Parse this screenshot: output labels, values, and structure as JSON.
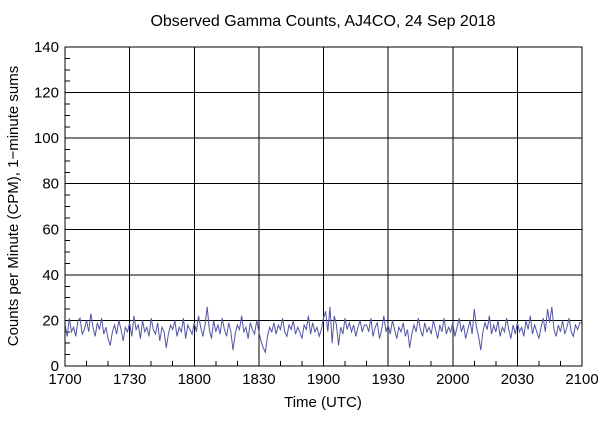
{
  "chart_data": {
    "type": "line",
    "title": "Observed Gamma Counts, AJ4CO, 24 Sep 2018",
    "xlabel": "Time (UTC)",
    "ylabel": "Counts per Minute (CPM), 1−minute sums",
    "x_ticks": [
      "1700",
      "1730",
      "1800",
      "1830",
      "1900",
      "1930",
      "2000",
      "2030",
      "2100"
    ],
    "x_major_step_minutes": 30,
    "x_minor_step_minutes": 10,
    "x_total_minutes": 240,
    "y_ticks": [
      0,
      20,
      40,
      60,
      80,
      100,
      120,
      140
    ],
    "ylim": [
      0,
      140
    ],
    "y_minor_step": 5,
    "grid": true,
    "legend": "none",
    "background_color": "#ffffff",
    "grid_color": "#000000",
    "line_color": "#5454a6",
    "sample_interval_minutes": 1,
    "series": [
      {
        "name": "gamma-counts-1-minute-sums",
        "values": [
          18,
          13,
          21,
          15,
          17,
          13,
          20,
          21,
          14,
          16,
          20,
          15,
          23,
          17,
          13,
          19,
          16,
          21,
          14,
          17,
          12,
          9,
          15,
          18,
          14,
          20,
          16,
          11,
          17,
          15,
          19,
          13,
          22,
          16,
          18,
          12,
          20,
          15,
          17,
          13,
          21,
          16,
          14,
          19,
          11,
          17,
          15,
          8,
          14,
          18,
          16,
          20,
          13,
          17,
          15,
          21,
          12,
          18,
          16,
          14,
          19,
          15,
          22,
          17,
          13,
          18,
          26,
          16,
          12,
          20,
          15,
          18,
          14,
          21,
          16,
          13,
          19,
          15,
          7,
          14,
          18,
          16,
          22,
          15,
          17,
          12,
          19,
          16,
          14,
          20,
          15,
          11,
          8,
          6,
          13,
          17,
          15,
          19,
          14,
          18,
          16,
          21,
          15,
          13,
          18,
          16,
          20,
          14,
          17,
          15,
          12,
          18,
          16,
          22,
          14,
          19,
          15,
          17,
          13,
          16,
          21,
          24,
          15,
          26,
          10,
          22,
          18,
          9,
          17,
          14,
          21,
          16,
          19,
          15,
          18,
          13,
          17,
          20,
          15,
          18,
          18,
          15,
          21,
          13,
          17,
          19,
          12,
          16,
          22,
          15,
          18,
          14,
          20,
          16,
          12,
          17,
          15,
          19,
          13,
          16,
          8,
          14,
          18,
          15,
          21,
          16,
          13,
          19,
          15,
          17,
          14,
          20,
          16,
          12,
          18,
          15,
          21,
          14,
          17,
          15,
          19,
          13,
          17,
          21,
          15,
          18,
          12,
          16,
          20,
          14,
          25,
          17,
          13,
          7,
          15,
          19,
          16,
          22,
          14,
          18,
          15,
          20,
          13,
          17,
          15,
          21,
          16,
          12,
          18,
          14,
          19,
          15,
          17,
          13,
          20,
          16,
          22,
          14,
          18,
          15,
          12,
          17,
          21,
          15,
          25,
          19,
          26,
          16,
          13,
          18,
          15,
          20,
          14,
          17,
          21,
          15,
          13,
          18,
          16,
          19,
          19
        ]
      }
    ]
  }
}
